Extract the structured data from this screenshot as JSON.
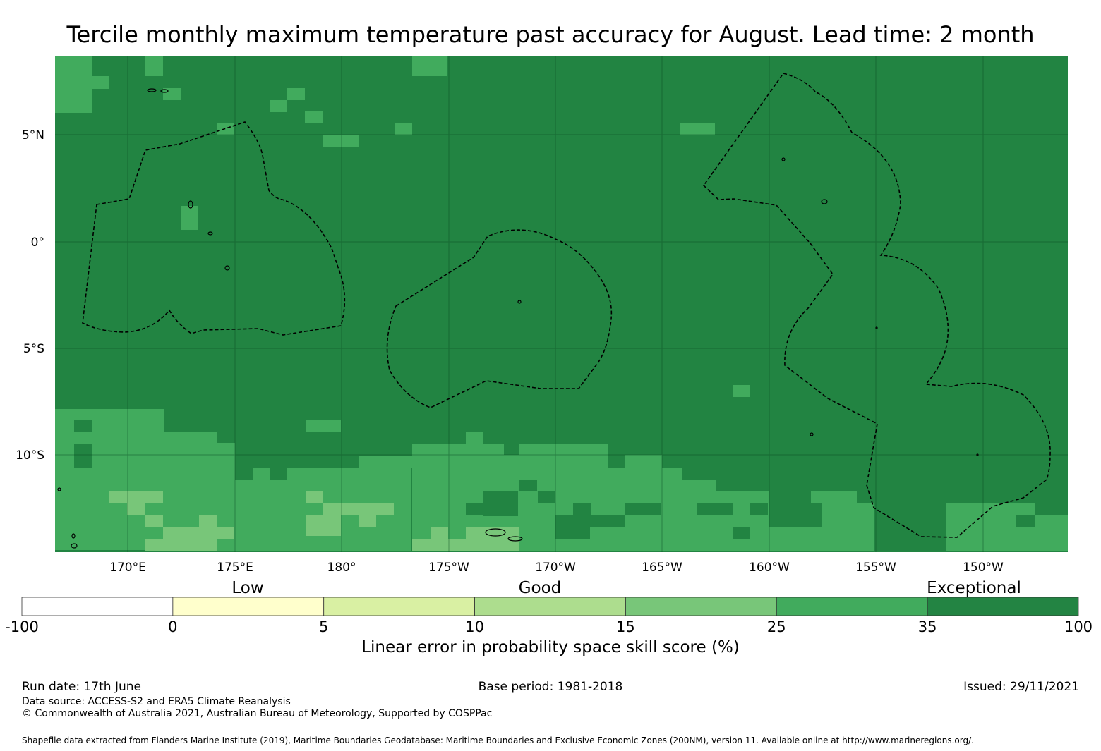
{
  "title": "Tercile monthly maximum temperature past accuracy for August. Lead time: 2 month",
  "map": {
    "base_color": "#228442",
    "lat_ticks": [
      "5°N",
      "0°",
      "5°S",
      "10°S"
    ],
    "lon_ticks": [
      "170°E",
      "175°E",
      "180°",
      "175°W",
      "170°W",
      "165°W",
      "160°W",
      "155°W",
      "150°W"
    ]
  },
  "colorbar": {
    "categories": [
      "Low",
      "Good",
      "Exceptional"
    ],
    "bins": [
      {
        "min": "-100",
        "max": "0",
        "color": "#ffffff"
      },
      {
        "min": "0",
        "max": "5",
        "color": "#ffffcc"
      },
      {
        "min": "5",
        "max": "10",
        "color": "#d9f0a3"
      },
      {
        "min": "10",
        "max": "15",
        "color": "#addd8e"
      },
      {
        "min": "15",
        "max": "25",
        "color": "#78c679"
      },
      {
        "min": "25",
        "max": "35",
        "color": "#41ab5d"
      },
      {
        "min": "35",
        "max": "100",
        "color": "#238443"
      }
    ],
    "tick_labels": [
      "-100",
      "0",
      "5",
      "10",
      "15",
      "25",
      "35",
      "100"
    ],
    "label": "Linear error in probability space skill score (%)"
  },
  "footer": {
    "run_date": "Run date: 17th June",
    "base_period": "Base period: 1981-2018",
    "issued": "Issued: 29/11/2021",
    "data_source": "Data source: ACCESS-S2 and ERA5 Climate Reanalysis",
    "copyright": "© Commonwealth of Australia 2021, Australian Bureau of Meteorology, Supported by COSPPac",
    "shapefile": "Shapefile data extracted from Flanders Marine Institute (2019), Maritime Boundaries Geodatabase: Maritime Boundaries and Exclusive Economic Zones (200NM), version 11. Available online at http://www.marineregions.org/."
  }
}
